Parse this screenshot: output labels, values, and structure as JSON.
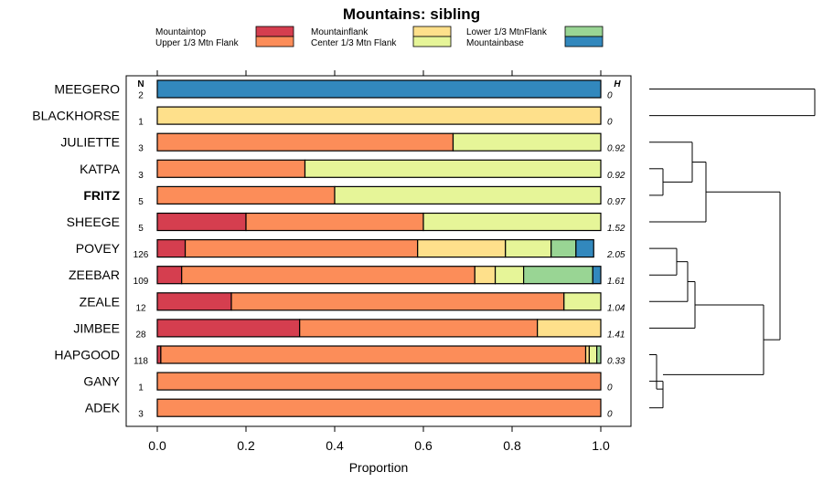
{
  "chart_data": {
    "type": "bar",
    "orientation": "horizontal-stacked",
    "title": "Mountains: sibling",
    "xlabel": "Proportion",
    "xlim": [
      0,
      1
    ],
    "xticks": [
      "0.0",
      "0.2",
      "0.4",
      "0.6",
      "0.8",
      "1.0"
    ],
    "n_header": "N",
    "h_header": "H",
    "legend": [
      {
        "label": "Mountaintop",
        "color": "#d53e4f"
      },
      {
        "label": "Upper 1/3 Mtn Flank",
        "color": "#fc8d59"
      },
      {
        "label": "Mountainflank",
        "color": "#fee08b"
      },
      {
        "label": "Center 1/3 Mtn Flank",
        "color": "#e6f598"
      },
      {
        "label": "Lower 1/3 MtnFlank",
        "color": "#99d594"
      },
      {
        "label": "Mountainbase",
        "color": "#3288bd"
      }
    ],
    "rows": [
      {
        "label": "MEEGERO",
        "bold": false,
        "n": "2",
        "h": "0",
        "values": [
          0,
          0,
          0,
          0,
          0,
          1.0
        ]
      },
      {
        "label": "BLACKHORSE",
        "bold": false,
        "n": "1",
        "h": "0",
        "values": [
          0,
          0,
          1.0,
          0,
          0,
          0
        ]
      },
      {
        "label": "JULIETTE",
        "bold": false,
        "n": "3",
        "h": "0.92",
        "values": [
          0,
          0.667,
          0,
          0.333,
          0,
          0
        ]
      },
      {
        "label": "KATPA",
        "bold": false,
        "n": "3",
        "h": "0.92",
        "values": [
          0,
          0.333,
          0,
          0.667,
          0,
          0
        ]
      },
      {
        "label": "FRITZ",
        "bold": true,
        "n": "5",
        "h": "0.97",
        "values": [
          0,
          0.4,
          0,
          0.6,
          0,
          0
        ]
      },
      {
        "label": "SHEEGE",
        "bold": false,
        "n": "5",
        "h": "1.52",
        "values": [
          0.2,
          0.4,
          0,
          0.4,
          0,
          0
        ]
      },
      {
        "label": "POVEY",
        "bold": false,
        "n": "126",
        "h": "2.05",
        "values": [
          0.063,
          0.524,
          0.198,
          0.103,
          0.056,
          0.04
        ]
      },
      {
        "label": "ZEEBAR",
        "bold": false,
        "n": "109",
        "h": "1.61",
        "values": [
          0.055,
          0.661,
          0.046,
          0.064,
          0.156,
          0.018
        ]
      },
      {
        "label": "ZEALE",
        "bold": false,
        "n": "12",
        "h": "1.04",
        "values": [
          0.167,
          0.75,
          0,
          0.083,
          0,
          0
        ]
      },
      {
        "label": "JIMBEE",
        "bold": false,
        "n": "28",
        "h": "1.41",
        "values": [
          0.321,
          0.536,
          0.143,
          0,
          0,
          0
        ]
      },
      {
        "label": "HAPGOOD",
        "bold": false,
        "n": "118",
        "h": "0.33",
        "values": [
          0.008,
          0.958,
          0.008,
          0.017,
          0.009,
          0
        ]
      },
      {
        "label": "GANY",
        "bold": false,
        "n": "1",
        "h": "0",
        "values": [
          0,
          1.0,
          0,
          0,
          0,
          0
        ]
      },
      {
        "label": "ADEK",
        "bold": false,
        "n": "3",
        "h": "0",
        "values": [
          0,
          1.0,
          0,
          0,
          0,
          0
        ]
      }
    ]
  }
}
